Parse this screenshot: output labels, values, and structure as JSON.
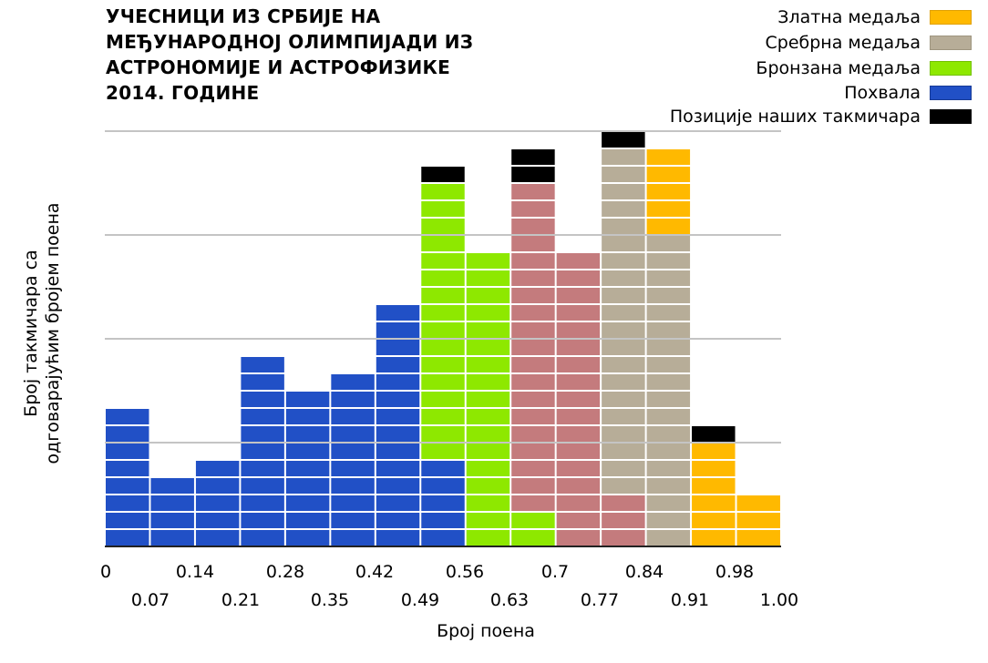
{
  "chart_data": {
    "type": "bar",
    "title_lines": [
      "УЧЕСНИЦИ ИЗ СРБИЈЕ НА",
      "МЕЂУНАРОДНОЈ ОЛИМПИЈАДИ ИЗ",
      "АСТРОНОМИЈЕ И АСТРОФИЗИКЕ",
      "2014. ГОДИНЕ"
    ],
    "xlabel": "Број поена",
    "ylabel_lines": [
      "Број такмичара са",
      "одговарајућим бројем поена"
    ],
    "x_ticks_top": [
      "0",
      "0.14",
      "0.28",
      "0.42",
      "0.56",
      "0.7",
      "0.84",
      "0.98"
    ],
    "x_ticks_bottom": [
      "0.07",
      "0.21",
      "0.35",
      "0.49",
      "0.63",
      "0.77",
      "0.91",
      "1.00"
    ],
    "bins": [
      "0–0.07",
      "0.07–0.14",
      "0.14–0.21",
      "0.21–0.28",
      "0.28–0.35",
      "0.35–0.42",
      "0.42–0.49",
      "0.49–0.56",
      "0.56–0.63",
      "0.63–0.70",
      "0.70–0.77",
      "0.77–0.84",
      "0.84–0.91",
      "0.91–0.98",
      "0.98–1.00"
    ],
    "ylim": [
      0,
      24
    ],
    "grid": true,
    "legend_position": "top-right",
    "legend": [
      {
        "label": "Златна медаља",
        "key": "gold",
        "color": "#ffb900"
      },
      {
        "label": "Сребрна медаља",
        "key": "silver",
        "color": "#b7ad98"
      },
      {
        "label": "Бронзана медаља",
        "key": "bronze",
        "color": "#8ee800"
      },
      {
        "label": "Похвала",
        "key": "honorable",
        "color": "#2150c6"
      },
      {
        "label": "Позиције наших такмичара",
        "key": "serbia",
        "color": "#000000"
      }
    ],
    "series": [
      {
        "name": "Похвала",
        "key": "honorable",
        "color": "#2150c6",
        "values": [
          8,
          4,
          5,
          11,
          9,
          10,
          14,
          5,
          0,
          0,
          0,
          0,
          0,
          0,
          0
        ]
      },
      {
        "name": "Бронзана медаља",
        "key": "bronze",
        "color": "#8ee800",
        "values": [
          0,
          0,
          0,
          0,
          0,
          0,
          0,
          16,
          17,
          2,
          0,
          0,
          0,
          0,
          0
        ]
      },
      {
        "name": "",
        "key": "unlabeled",
        "color": "#c47b7d",
        "values": [
          0,
          0,
          0,
          0,
          0,
          0,
          0,
          0,
          0,
          19,
          17,
          3,
          0,
          0,
          0
        ]
      },
      {
        "name": "Сребрна медаља",
        "key": "silver",
        "color": "#b7ad98",
        "values": [
          0,
          0,
          0,
          0,
          0,
          0,
          0,
          0,
          0,
          0,
          0,
          20,
          18,
          0,
          0
        ]
      },
      {
        "name": "Златна медаља",
        "key": "gold",
        "color": "#ffb900",
        "values": [
          0,
          0,
          0,
          0,
          0,
          0,
          0,
          0,
          0,
          0,
          0,
          0,
          5,
          6,
          3
        ]
      },
      {
        "name": "Позиције наших такмичара",
        "key": "serbia",
        "color": "#000000",
        "values": [
          0,
          0,
          0,
          0,
          0,
          0,
          0,
          1,
          0,
          2,
          0,
          1,
          0,
          1,
          0
        ]
      }
    ]
  }
}
